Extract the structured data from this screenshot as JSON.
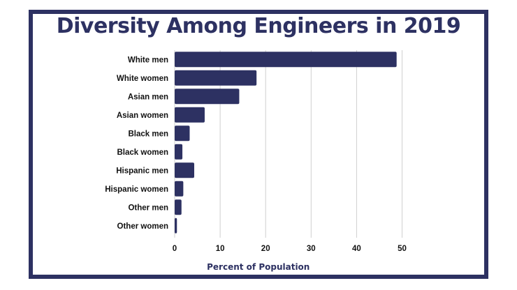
{
  "colors": {
    "bar": "#2d3162",
    "frame": "#2d3162",
    "grid": "#cfcfcf"
  },
  "chart_data": {
    "type": "bar",
    "orientation": "horizontal",
    "title": "Diversity Among Engineers in 2019",
    "xlabel": "Percent of Population",
    "ylabel": "",
    "categories": [
      "White men",
      "White women",
      "Asian men",
      "Asian women",
      "Black men",
      "Black women",
      "Hispanic men",
      "Hispanic women",
      "Other men",
      "Other women"
    ],
    "values": [
      48.8,
      18.0,
      14.2,
      6.6,
      3.3,
      1.7,
      4.3,
      1.9,
      1.5,
      0.5
    ],
    "xlim": [
      0,
      50
    ],
    "xticks": [
      "0",
      "10",
      "20",
      "30",
      "40",
      "50"
    ],
    "grid": true
  }
}
